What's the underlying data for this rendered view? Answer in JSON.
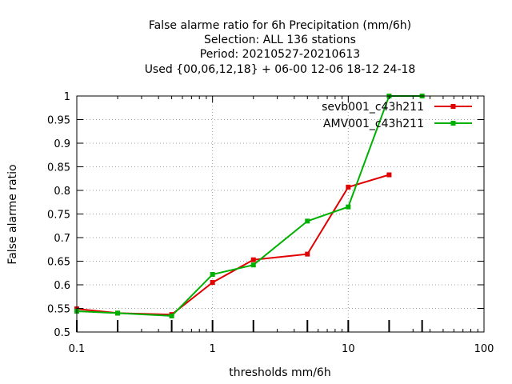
{
  "chart_data": {
    "type": "line",
    "title_lines": [
      "False alarme ratio  for 6h Precipitation (mm/6h)",
      "Selection: ALL    136 stations",
      "Period: 20210527-20210613",
      "Used {00,06,12,18} + 06-00 12-06 18-12 24-18"
    ],
    "xlabel": "thresholds mm/6h",
    "ylabel": "False alarme ratio",
    "x_scale": "log",
    "xlim": [
      0.1,
      100
    ],
    "ylim": [
      0.5,
      1.0
    ],
    "x_ticks": [
      0.1,
      1,
      10,
      100
    ],
    "x_tick_labels": [
      "0.1",
      "1",
      "10",
      "100"
    ],
    "y_ticks": [
      0.5,
      0.55,
      0.6,
      0.65,
      0.7,
      0.75,
      0.8,
      0.85,
      0.9,
      0.95,
      1.0
    ],
    "y_tick_labels": [
      "0.5",
      "0.55",
      "0.6",
      "0.65",
      "0.7",
      "0.75",
      "0.8",
      "0.85",
      "0.9",
      "0.95",
      "1"
    ],
    "grid": true,
    "legend_position": "top-right",
    "threshold_markers": [
      0.1,
      0.2,
      0.5,
      1,
      2,
      5,
      10,
      20,
      35
    ],
    "series": [
      {
        "name": "sevb001_c43h211",
        "color": "#e00000",
        "x": [
          0.1,
          0.2,
          0.5,
          1,
          2,
          5,
          10,
          20
        ],
        "y": [
          0.549,
          0.54,
          0.537,
          0.605,
          0.653,
          0.665,
          0.807,
          0.833
        ]
      },
      {
        "name": "AMV001_c43h211",
        "color": "#00b000",
        "x": [
          0.1,
          0.2,
          0.5,
          1,
          2,
          5,
          10,
          20,
          35
        ],
        "y": [
          0.544,
          0.54,
          0.534,
          0.622,
          0.642,
          0.735,
          0.765,
          1.0,
          1.0
        ]
      }
    ]
  }
}
